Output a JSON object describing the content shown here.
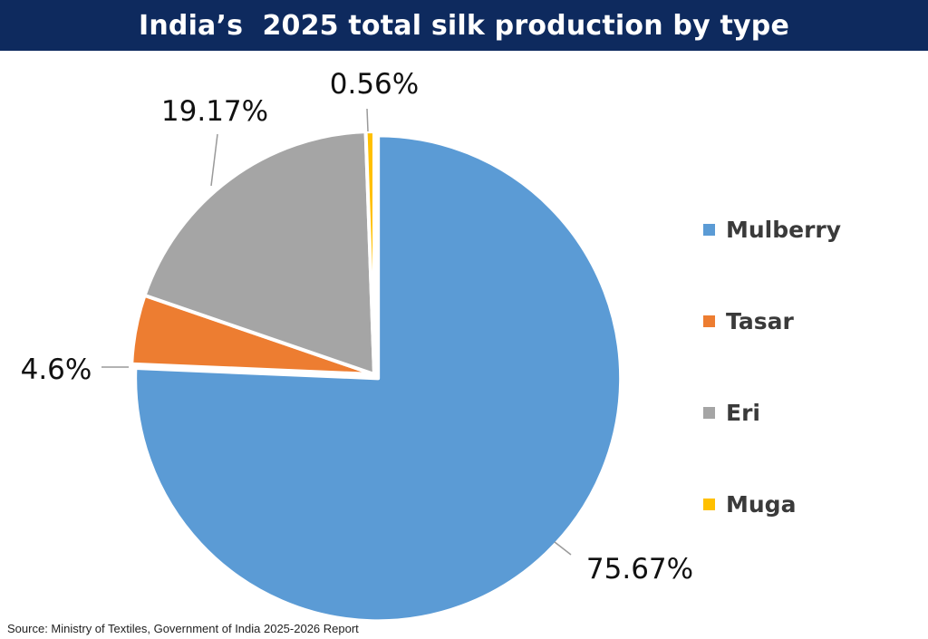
{
  "header": {
    "title": "India’s  2025 total silk production by type"
  },
  "chart_data": {
    "type": "pie",
    "title": "India’s  2025 total silk production by type",
    "unit": "%",
    "slices": [
      {
        "label": "Mulberry",
        "value": 75.67,
        "display": "75.67%",
        "color": "#5b9bd5"
      },
      {
        "label": "Tasar",
        "value": 4.6,
        "display": "4.6%",
        "color": "#ed7d31"
      },
      {
        "label": "Eri",
        "value": 19.17,
        "display": "19.17%",
        "color": "#a5a5a5"
      },
      {
        "label": "Muga",
        "value": 0.56,
        "display": "0.56%",
        "color": "#ffc000"
      }
    ],
    "start_direction": "12 o'clock",
    "direction": "clockwise",
    "exploded_slice": "Mulberry",
    "legend_position": "right"
  },
  "footer": {
    "source": "Source: Ministry of Textiles, Government of India 2025-2026 Report"
  }
}
